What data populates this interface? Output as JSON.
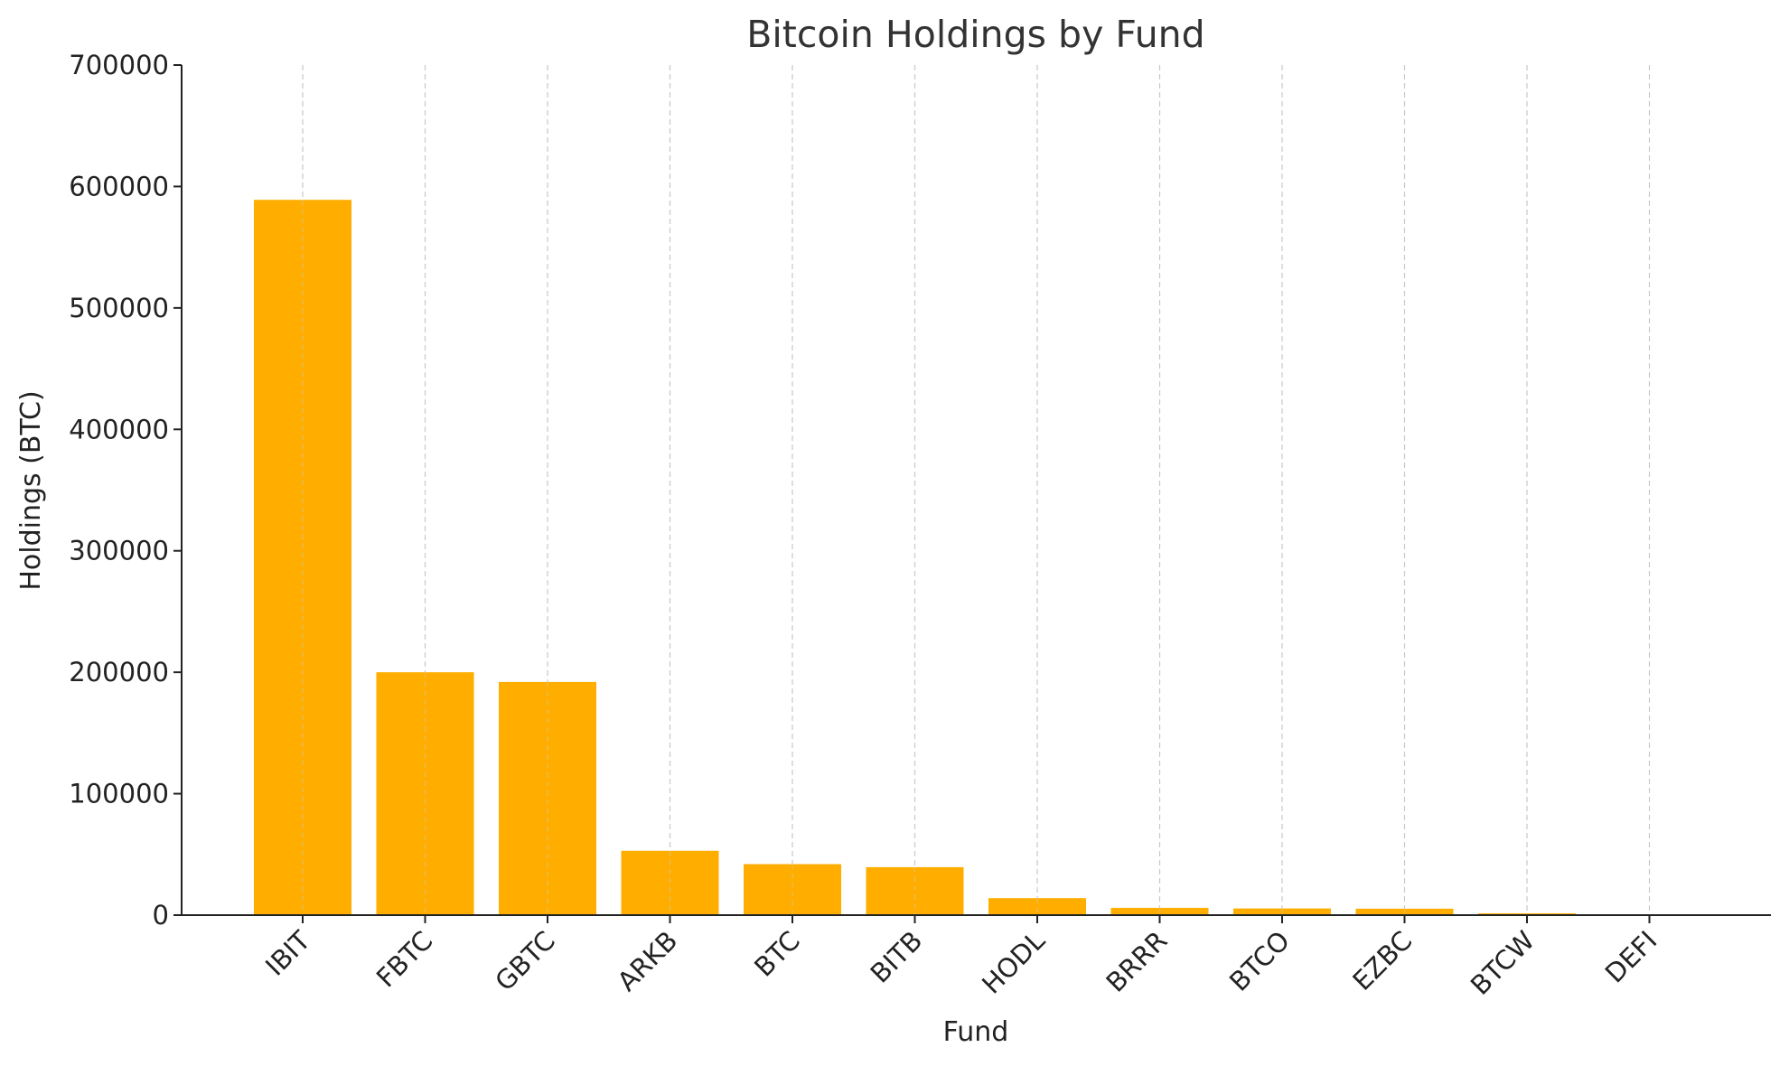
{
  "chart_data": {
    "type": "bar",
    "title": "Bitcoin Holdings by Fund",
    "xlabel": "Fund",
    "ylabel": "Holdings (BTC)",
    "categories": [
      "IBIT",
      "FBTC",
      "GBTC",
      "ARKB",
      "BTC",
      "BITB",
      "HODL",
      "BRRR",
      "BTCO",
      "EZBC",
      "BTCW",
      "DEFI"
    ],
    "values": [
      589000,
      200000,
      192000,
      53000,
      42000,
      39500,
      14000,
      6000,
      5500,
      5300,
      1500,
      200
    ],
    "ylim": [
      0,
      700000
    ],
    "yticks": [
      "0",
      "100000",
      "200000",
      "300000",
      "400000",
      "500000",
      "600000",
      "700000"
    ],
    "grid": "vertical dashed",
    "bar_color": "#FFAE00"
  }
}
